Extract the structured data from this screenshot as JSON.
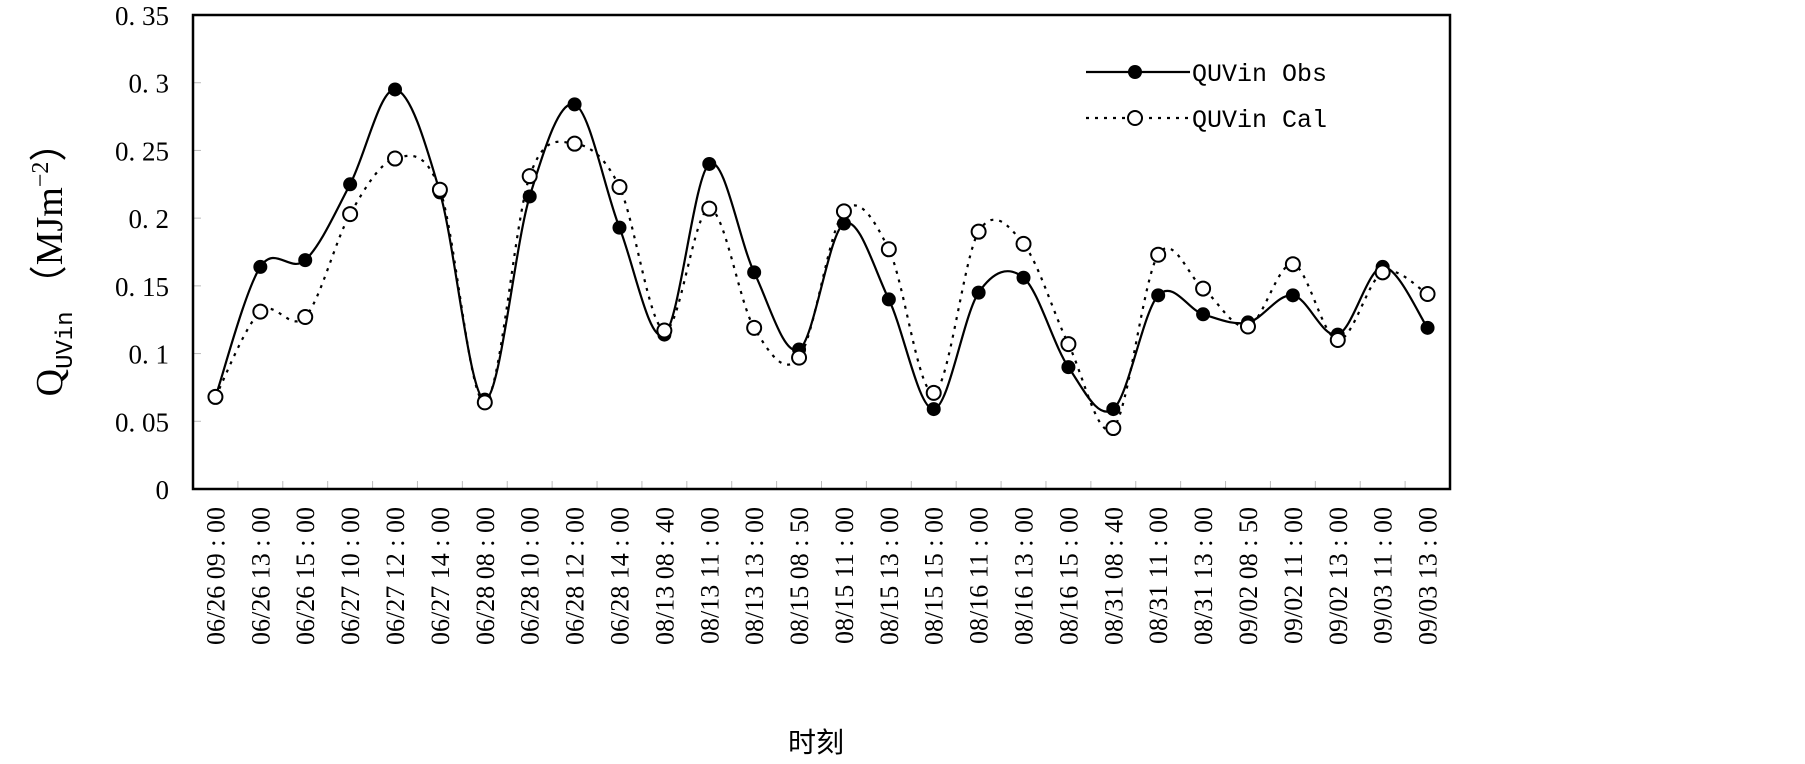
{
  "chart_data": {
    "type": "line",
    "title": "",
    "xlabel": "时刻",
    "ylabel": {
      "main": "Q",
      "sub": "UVin",
      "unit_prefix": "（MJm",
      "unit_exp": "−2",
      "unit_suffix": "）"
    },
    "ylim": [
      0,
      0.35
    ],
    "yticks": [
      "0",
      "0.05",
      "0.1",
      "0.15",
      "0.2",
      "0.25",
      "0.3",
      "0.35"
    ],
    "ytick_values": [
      0,
      0.05,
      0.1,
      0.15,
      0.2,
      0.25,
      0.3,
      0.35
    ],
    "grid": false,
    "legend_position": "top-right",
    "categories": [
      {
        "date": "06/26",
        "time": "09:00"
      },
      {
        "date": "06/26",
        "time": "13:00"
      },
      {
        "date": "06/26",
        "time": "15:00"
      },
      {
        "date": "06/27",
        "time": "10:00"
      },
      {
        "date": "06/27",
        "time": "12:00"
      },
      {
        "date": "06/27",
        "time": "14:00"
      },
      {
        "date": "06/28",
        "time": "08:00"
      },
      {
        "date": "06/28",
        "time": "10:00"
      },
      {
        "date": "06/28",
        "time": "12:00"
      },
      {
        "date": "06/28",
        "time": "14:00"
      },
      {
        "date": "08/13",
        "time": "08:40"
      },
      {
        "date": "08/13",
        "time": "11:00"
      },
      {
        "date": "08/13",
        "time": "13:00"
      },
      {
        "date": "08/15",
        "time": "08:50"
      },
      {
        "date": "08/15",
        "time": "11:00"
      },
      {
        "date": "08/15",
        "time": "13:00"
      },
      {
        "date": "08/15",
        "time": "15:00"
      },
      {
        "date": "08/16",
        "time": "11:00"
      },
      {
        "date": "08/16",
        "time": "13:00"
      },
      {
        "date": "08/16",
        "time": "15:00"
      },
      {
        "date": "08/31",
        "time": "08:40"
      },
      {
        "date": "08/31",
        "time": "11:00"
      },
      {
        "date": "08/31",
        "time": "13:00"
      },
      {
        "date": "09/02",
        "time": "08:50"
      },
      {
        "date": "09/02",
        "time": "11:00"
      },
      {
        "date": "09/02",
        "time": "13:00"
      },
      {
        "date": "09/03",
        "time": "11:00"
      },
      {
        "date": "09/03",
        "time": "13:00"
      }
    ],
    "series": [
      {
        "name": "QUVin Obs",
        "style": "solid",
        "marker": "filled-circle",
        "values": [
          0.068,
          0.164,
          0.169,
          0.225,
          0.295,
          0.219,
          0.066,
          0.216,
          0.284,
          0.193,
          0.114,
          0.24,
          0.16,
          0.103,
          0.196,
          0.14,
          0.059,
          0.145,
          0.156,
          0.09,
          0.059,
          0.143,
          0.129,
          0.123,
          0.143,
          0.114,
          0.164,
          0.119
        ]
      },
      {
        "name": "QUVin Cal",
        "style": "dotted",
        "marker": "open-circle",
        "values": [
          0.068,
          0.131,
          0.127,
          0.203,
          0.244,
          0.221,
          0.064,
          0.231,
          0.255,
          0.223,
          0.117,
          0.207,
          0.119,
          0.097,
          0.205,
          0.177,
          0.071,
          0.19,
          0.181,
          0.107,
          0.045,
          0.173,
          0.148,
          0.12,
          0.166,
          0.11,
          0.16,
          0.144
        ]
      }
    ]
  }
}
